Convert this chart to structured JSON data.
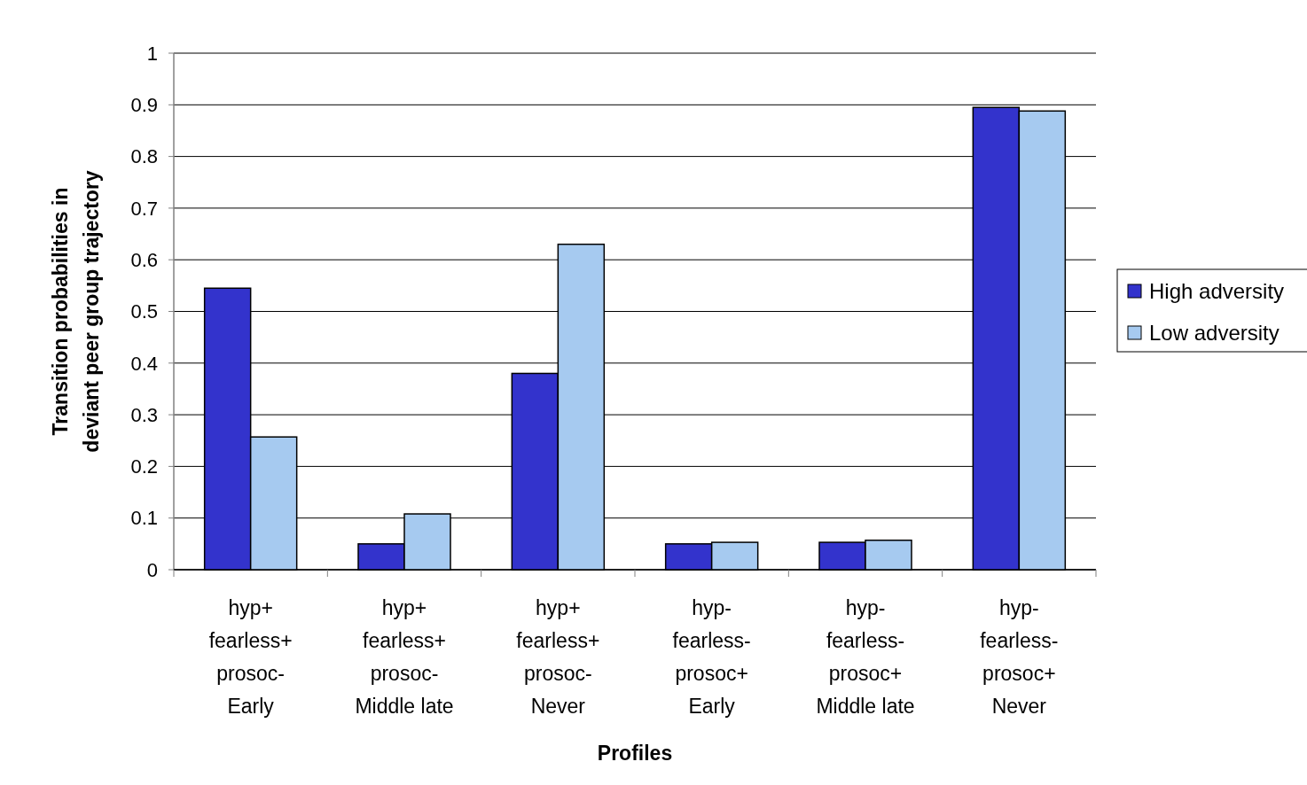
{
  "chart_data": {
    "type": "bar",
    "xlabel": "Profiles",
    "ylabel": "Transition probabilities in\ndeviant peer group trajectory",
    "categories": [
      "hyp+\nfearless+\nprosoc-\nEarly",
      "hyp+\nfearless+\nprosoc-\nMiddle late",
      "hyp+\nfearless+\nprosoc-\nNever",
      "hyp-\nfearless-\nprosoc+\nEarly",
      "hyp-\nfearless-\nprosoc+\nMiddle late",
      "hyp-\nfearless-\nprosoc+\nNever"
    ],
    "series": [
      {
        "name": "High adversity",
        "color": "#3333cc",
        "values": [
          0.545,
          0.05,
          0.38,
          0.05,
          0.053,
          0.895
        ]
      },
      {
        "name": "Low adversity",
        "color": "#a6caf0",
        "values": [
          0.257,
          0.108,
          0.63,
          0.053,
          0.057,
          0.888
        ]
      }
    ],
    "ylim": [
      0,
      1
    ],
    "yticks": [
      0,
      0.1,
      0.2,
      0.3,
      0.4,
      0.5,
      0.6,
      0.7,
      0.8,
      0.9,
      1
    ],
    "grid": "y",
    "legend": "right"
  }
}
